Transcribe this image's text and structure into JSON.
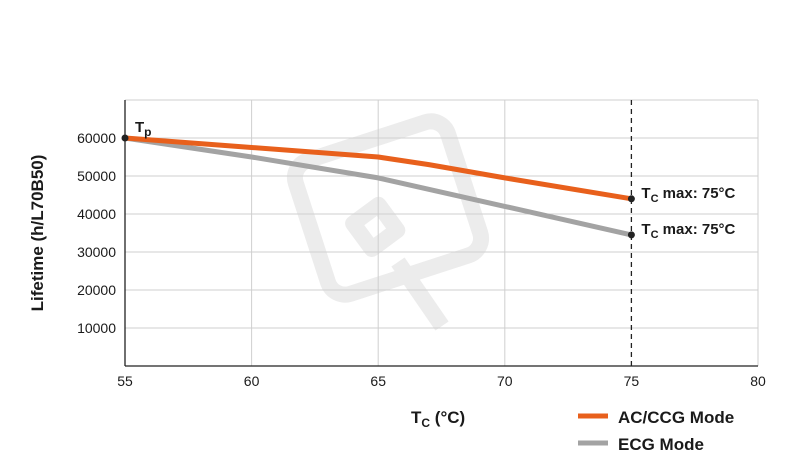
{
  "chart_data": {
    "type": "line",
    "xlabel": {
      "main": "T",
      "sub": "C",
      "unit": " (°C)"
    },
    "ylabel": "Lifetime (h/L70B50)",
    "xlim": [
      55,
      80
    ],
    "ylim": [
      0,
      70000
    ],
    "x_ticks": [
      55,
      60,
      65,
      70,
      75,
      80
    ],
    "y_ticks": [
      10000,
      20000,
      30000,
      40000,
      50000,
      60000
    ],
    "y_tick_labels": [
      "10000",
      "20000",
      "30000",
      "40000",
      "50000",
      "60000"
    ],
    "grid": true,
    "legend_position": "bottom-right",
    "series": [
      {
        "name": "AC/CCG Mode",
        "color": "#e8601c",
        "x": [
          55,
          60,
          65,
          67,
          70,
          75
        ],
        "y": [
          60000,
          57500,
          55000,
          53000,
          49500,
          44000
        ]
      },
      {
        "name": "ECG Mode",
        "color": "#a3a3a3",
        "x": [
          55,
          60,
          65,
          70,
          75
        ],
        "y": [
          60000,
          55000,
          49500,
          42000,
          34500
        ]
      }
    ],
    "annotations": {
      "tp": {
        "main": "T",
        "sub": "p"
      },
      "tc_max": {
        "main": "T",
        "sub": "C",
        "text": " max: 75°C",
        "x": 75
      }
    }
  }
}
